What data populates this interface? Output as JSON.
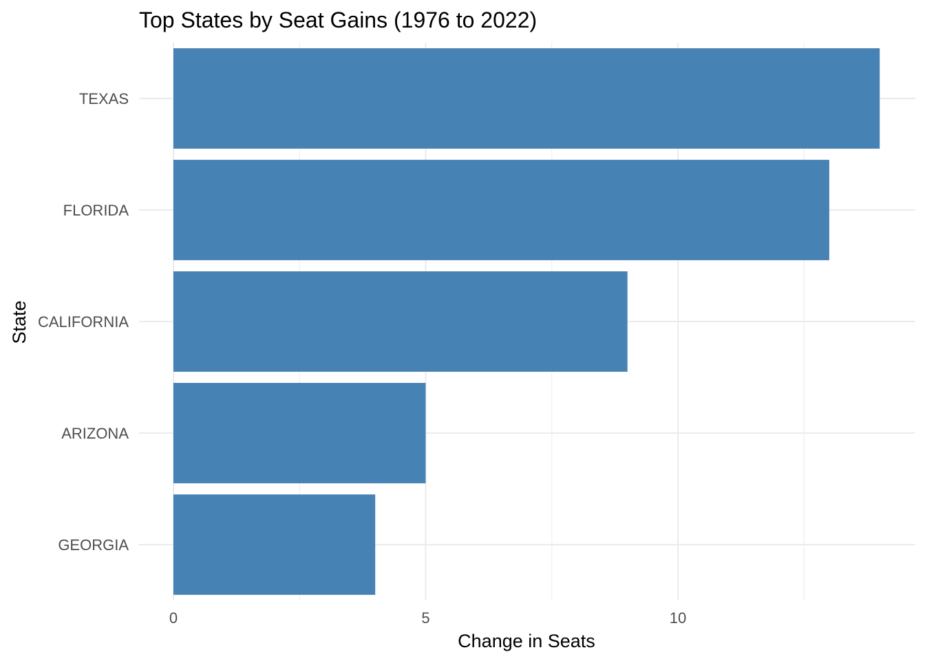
{
  "chart_data": {
    "type": "bar",
    "orientation": "horizontal",
    "title": "Top States by Seat Gains (1976 to 2022)",
    "xlabel": "Change in Seats",
    "ylabel": "State",
    "categories": [
      "TEXAS",
      "FLORIDA",
      "CALIFORNIA",
      "ARIZONA",
      "GEORGIA"
    ],
    "values": [
      14,
      13,
      9,
      5,
      4
    ],
    "xlim": [
      0,
      14.7
    ],
    "x_ticks": [
      0,
      5,
      10
    ],
    "x_tick_labels": [
      "0",
      "5",
      "10"
    ],
    "bar_color": "#4682b4",
    "grid": true,
    "legend": "none"
  }
}
